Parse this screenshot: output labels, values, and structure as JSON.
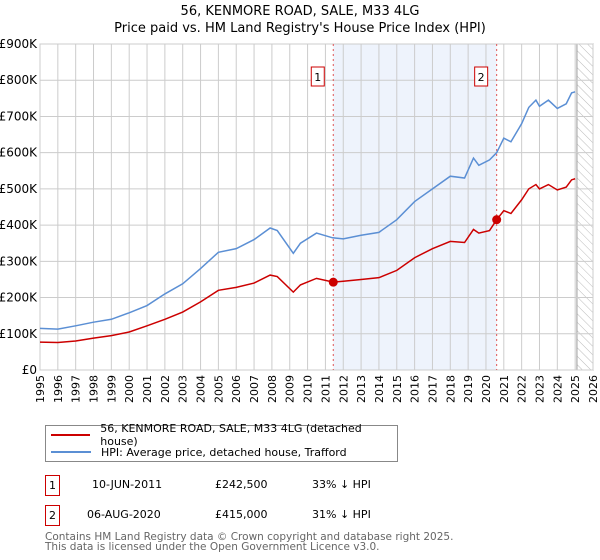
{
  "chart_data": {
    "type": "line",
    "title": "56, KENMORE ROAD, SALE, M33 4LG",
    "subtitle": "Price paid vs. HM Land Registry's House Price Index (HPI)",
    "xlim": [
      1995,
      2026
    ],
    "ylim": [
      0,
      900000
    ],
    "y_ticks": [
      {
        "v": 0,
        "label": "£0"
      },
      {
        "v": 100000,
        "label": "£100K"
      },
      {
        "v": 200000,
        "label": "£200K"
      },
      {
        "v": 300000,
        "label": "£300K"
      },
      {
        "v": 400000,
        "label": "£400K"
      },
      {
        "v": 500000,
        "label": "£500K"
      },
      {
        "v": 600000,
        "label": "£600K"
      },
      {
        "v": 700000,
        "label": "£700K"
      },
      {
        "v": 800000,
        "label": "£800K"
      },
      {
        "v": 900000,
        "label": "£900K"
      }
    ],
    "x_ticks": [
      "1995",
      "1996",
      "1997",
      "1998",
      "1999",
      "2000",
      "2001",
      "2002",
      "2003",
      "2004",
      "2005",
      "2006",
      "2007",
      "2008",
      "2009",
      "2010",
      "2011",
      "2012",
      "2013",
      "2014",
      "2015",
      "2016",
      "2017",
      "2018",
      "2019",
      "2020",
      "2021",
      "2022",
      "2023",
      "2024",
      "2025",
      "2026"
    ],
    "grid": true,
    "forecast_hatch_from": 2025.1,
    "series": [
      {
        "name": "56, KENMORE ROAD, SALE, M33 4LG (detached house)",
        "color": "#cc0000",
        "x": [
          1995,
          1996,
          1997,
          1998,
          1999,
          2000,
          2001,
          2002,
          2003,
          2004,
          2005,
          2006,
          2007,
          2007.9,
          2008.3,
          2009.2,
          2009.6,
          2010.5,
          2011.44,
          2012,
          2013,
          2014,
          2015,
          2016,
          2017,
          2018,
          2018.8,
          2019.3,
          2019.6,
          2020.2,
          2020.6,
          2021,
          2021.4,
          2022,
          2022.4,
          2022.8,
          2023,
          2023.5,
          2024,
          2024.5,
          2024.8,
          2025
        ],
        "y": [
          77000,
          76000,
          80000,
          88000,
          95000,
          105000,
          122000,
          140000,
          160000,
          188000,
          220000,
          228000,
          240000,
          262000,
          258000,
          215000,
          235000,
          253000,
          242500,
          245000,
          250000,
          255000,
          275000,
          310000,
          335000,
          355000,
          352000,
          388000,
          378000,
          385000,
          415000,
          440000,
          432000,
          470000,
          500000,
          512000,
          500000,
          512000,
          497000,
          505000,
          525000,
          528000
        ]
      },
      {
        "name": "HPI: Average price, detached house, Trafford",
        "color": "#5b8fd4",
        "x": [
          1995,
          1996,
          1997,
          1998,
          1999,
          2000,
          2001,
          2002,
          2003,
          2004,
          2005,
          2006,
          2007,
          2007.9,
          2008.3,
          2009.2,
          2009.6,
          2010.5,
          2011.4,
          2012,
          2013,
          2014,
          2015,
          2016,
          2017,
          2018,
          2018.8,
          2019.3,
          2019.6,
          2020.2,
          2020.6,
          2021,
          2021.4,
          2022,
          2022.4,
          2022.8,
          2023,
          2023.5,
          2024,
          2024.5,
          2024.8,
          2025
        ],
        "y": [
          115000,
          113000,
          122000,
          132000,
          140000,
          158000,
          178000,
          210000,
          238000,
          280000,
          325000,
          335000,
          360000,
          392000,
          385000,
          322000,
          350000,
          378000,
          365000,
          362000,
          372000,
          380000,
          415000,
          465000,
          500000,
          535000,
          530000,
          585000,
          565000,
          580000,
          600000,
          640000,
          630000,
          680000,
          725000,
          745000,
          728000,
          745000,
          722000,
          735000,
          765000,
          768000
        ]
      }
    ],
    "sales": [
      {
        "label": "1",
        "x": 2011.44,
        "y": 242500
      },
      {
        "label": "2",
        "x": 2020.6,
        "y": 415000
      }
    ]
  },
  "legend": {
    "items": [
      {
        "label": "56, KENMORE ROAD, SALE, M33 4LG (detached house)",
        "color": "#cc0000"
      },
      {
        "label": "HPI: Average price, detached house, Trafford",
        "color": "#5b8fd4"
      }
    ]
  },
  "transactions": [
    {
      "num": "1",
      "date": "10-JUN-2011",
      "price": "£242,500",
      "hpi": "33% ↓ HPI"
    },
    {
      "num": "2",
      "date": "06-AUG-2020",
      "price": "£415,000",
      "hpi": "31% ↓ HPI"
    }
  ],
  "footer": {
    "line1": "Contains HM Land Registry data © Crown copyright and database right 2025.",
    "line2": "This data is licensed under the Open Government Licence v3.0."
  }
}
